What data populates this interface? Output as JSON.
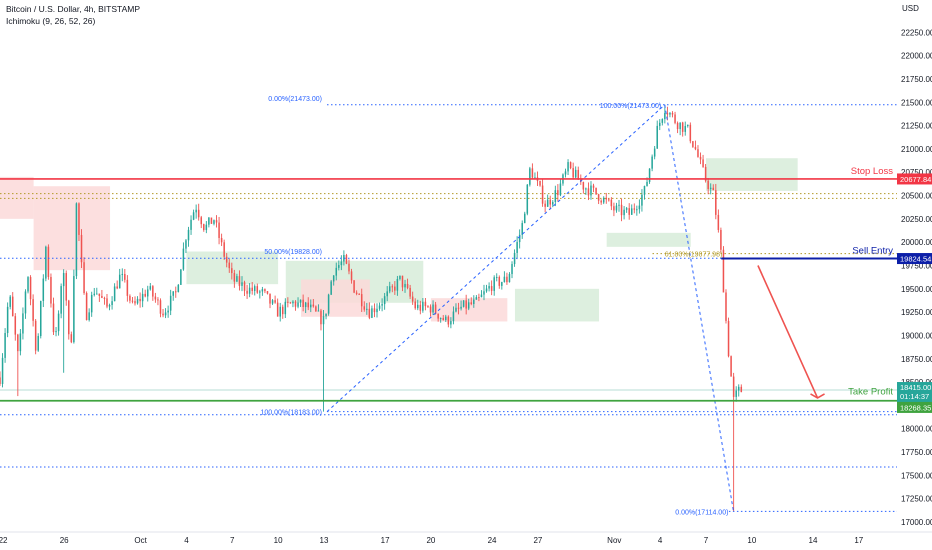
{
  "legend": {
    "symbol": "Bitcoin / U.S. Dollar, 4h, BITSTAMP",
    "indicator": "Ichimoku (9, 26, 52, 26)"
  },
  "colors": {
    "up": "#26a69a",
    "down": "#ef5350",
    "stop_loss": "#f23645",
    "sell_entry": "#0c1fa8",
    "take_profit": "#3fa33f",
    "fib": "#2962ff",
    "fib_618": "#b39b2a",
    "cloud_bull": "#d7ecd9",
    "cloud_bear": "#fbd9d9"
  },
  "chart_data": {
    "type": "candlestick",
    "title": "Bitcoin / U.S. Dollar, 4h, BITSTAMP",
    "currency_label": "USD",
    "ylim": [
      17000,
      22500
    ],
    "y_ticks": [
      "17000.00",
      "17250.00",
      "17500.00",
      "17750.00",
      "18000.00",
      "18250.00",
      "18500.00",
      "18750.00",
      "19000.00",
      "19250.00",
      "19500.00",
      "19750.00",
      "20000.00",
      "20250.00",
      "20500.00",
      "20750.00",
      "21000.00",
      "21250.00",
      "21500.00",
      "21750.00",
      "22000.00",
      "22250.00"
    ],
    "x_ticks": [
      "22",
      "26",
      "Oct",
      "4",
      "7",
      "10",
      "13",
      "17",
      "20",
      "24",
      "27",
      "Nov",
      "4",
      "7",
      "10",
      "14",
      "17"
    ],
    "x_tick_days": [
      -9,
      -5,
      0,
      3,
      6,
      9,
      12,
      16,
      19,
      23,
      26,
      31,
      34,
      37,
      40,
      44,
      47
    ],
    "x_range_days": [
      -9.2,
      49.5
    ],
    "candles_anchor": [
      [
        -9.2,
        18550
      ],
      [
        -8.6,
        19450
      ],
      [
        -8.0,
        18750
      ],
      [
        -7.4,
        19700
      ],
      [
        -6.8,
        18800
      ],
      [
        -6.2,
        19950
      ],
      [
        -5.6,
        18900
      ],
      [
        -5.0,
        19750
      ],
      [
        -4.6,
        18700
      ],
      [
        -4.2,
        20400
      ],
      [
        -3.6,
        19200
      ],
      [
        -3.0,
        19500
      ],
      [
        -2.2,
        19300
      ],
      [
        -1.3,
        19650
      ],
      [
        -0.5,
        19300
      ],
      [
        0.5,
        19500
      ],
      [
        1.5,
        19250
      ],
      [
        2.3,
        19450
      ],
      [
        3.0,
        20100
      ],
      [
        3.6,
        20400
      ],
      [
        4.2,
        20150
      ],
      [
        4.8,
        20250
      ],
      [
        5.4,
        19900
      ],
      [
        6.0,
        19600
      ],
      [
        7.0,
        19500
      ],
      [
        8.0,
        19450
      ],
      [
        9.0,
        19250
      ],
      [
        10.0,
        19350
      ],
      [
        11.0,
        19300
      ],
      [
        12.0,
        19150
      ],
      [
        12.6,
        19700
      ],
      [
        13.3,
        19800
      ],
      [
        14.0,
        19500
      ],
      [
        15.0,
        19250
      ],
      [
        16.0,
        19400
      ],
      [
        17.0,
        19600
      ],
      [
        18.0,
        19300
      ],
      [
        19.0,
        19300
      ],
      [
        20.0,
        19150
      ],
      [
        21.0,
        19300
      ],
      [
        22.0,
        19350
      ],
      [
        23.0,
        19550
      ],
      [
        24.0,
        19600
      ],
      [
        25.0,
        20200
      ],
      [
        25.5,
        20800
      ],
      [
        26.5,
        20400
      ],
      [
        27.3,
        20550
      ],
      [
        28.0,
        20800
      ],
      [
        29.0,
        20600
      ],
      [
        30.0,
        20500
      ],
      [
        31.0,
        20350
      ],
      [
        32.0,
        20300
      ],
      [
        33.0,
        20550
      ],
      [
        33.8,
        21200
      ],
      [
        34.3,
        21450
      ],
      [
        35.0,
        21300
      ],
      [
        35.8,
        21200
      ],
      [
        36.3,
        21000
      ],
      [
        36.9,
        20700
      ],
      [
        37.5,
        20500
      ],
      [
        38.0,
        19850
      ],
      [
        38.4,
        18950
      ],
      [
        38.8,
        18300
      ],
      [
        39.1,
        18400
      ],
      [
        39.4,
        18415
      ]
    ],
    "current_price": "18415.00",
    "countdown": "01:14:37",
    "levels": [
      {
        "name": "Stop Loss",
        "price": 20677.84,
        "label": "20677.84"
      },
      {
        "name": "Sell Entry",
        "price": 19824.54,
        "label": "19824.54"
      },
      {
        "name": "Take Profit",
        "price": 18268.35,
        "label": "18268.35"
      }
    ],
    "fib_labels": {
      "top_left": "0.00%(21473.00)",
      "mid_left": "50.00%(19828.00)",
      "bottom_left": "100.00%(18183.00)",
      "top_right": "100.00%(21473.00)",
      "mid_right": "61.80%(19877.98)",
      "bottom_right": "0.00%(17114.00)"
    },
    "fib_prices": {
      "high": 21473,
      "mid": 19828,
      "low": 18183,
      "retr_618": 19877.98,
      "new_low": 17114
    },
    "extra_lines": [
      20520,
      20470,
      18150,
      17590
    ]
  }
}
